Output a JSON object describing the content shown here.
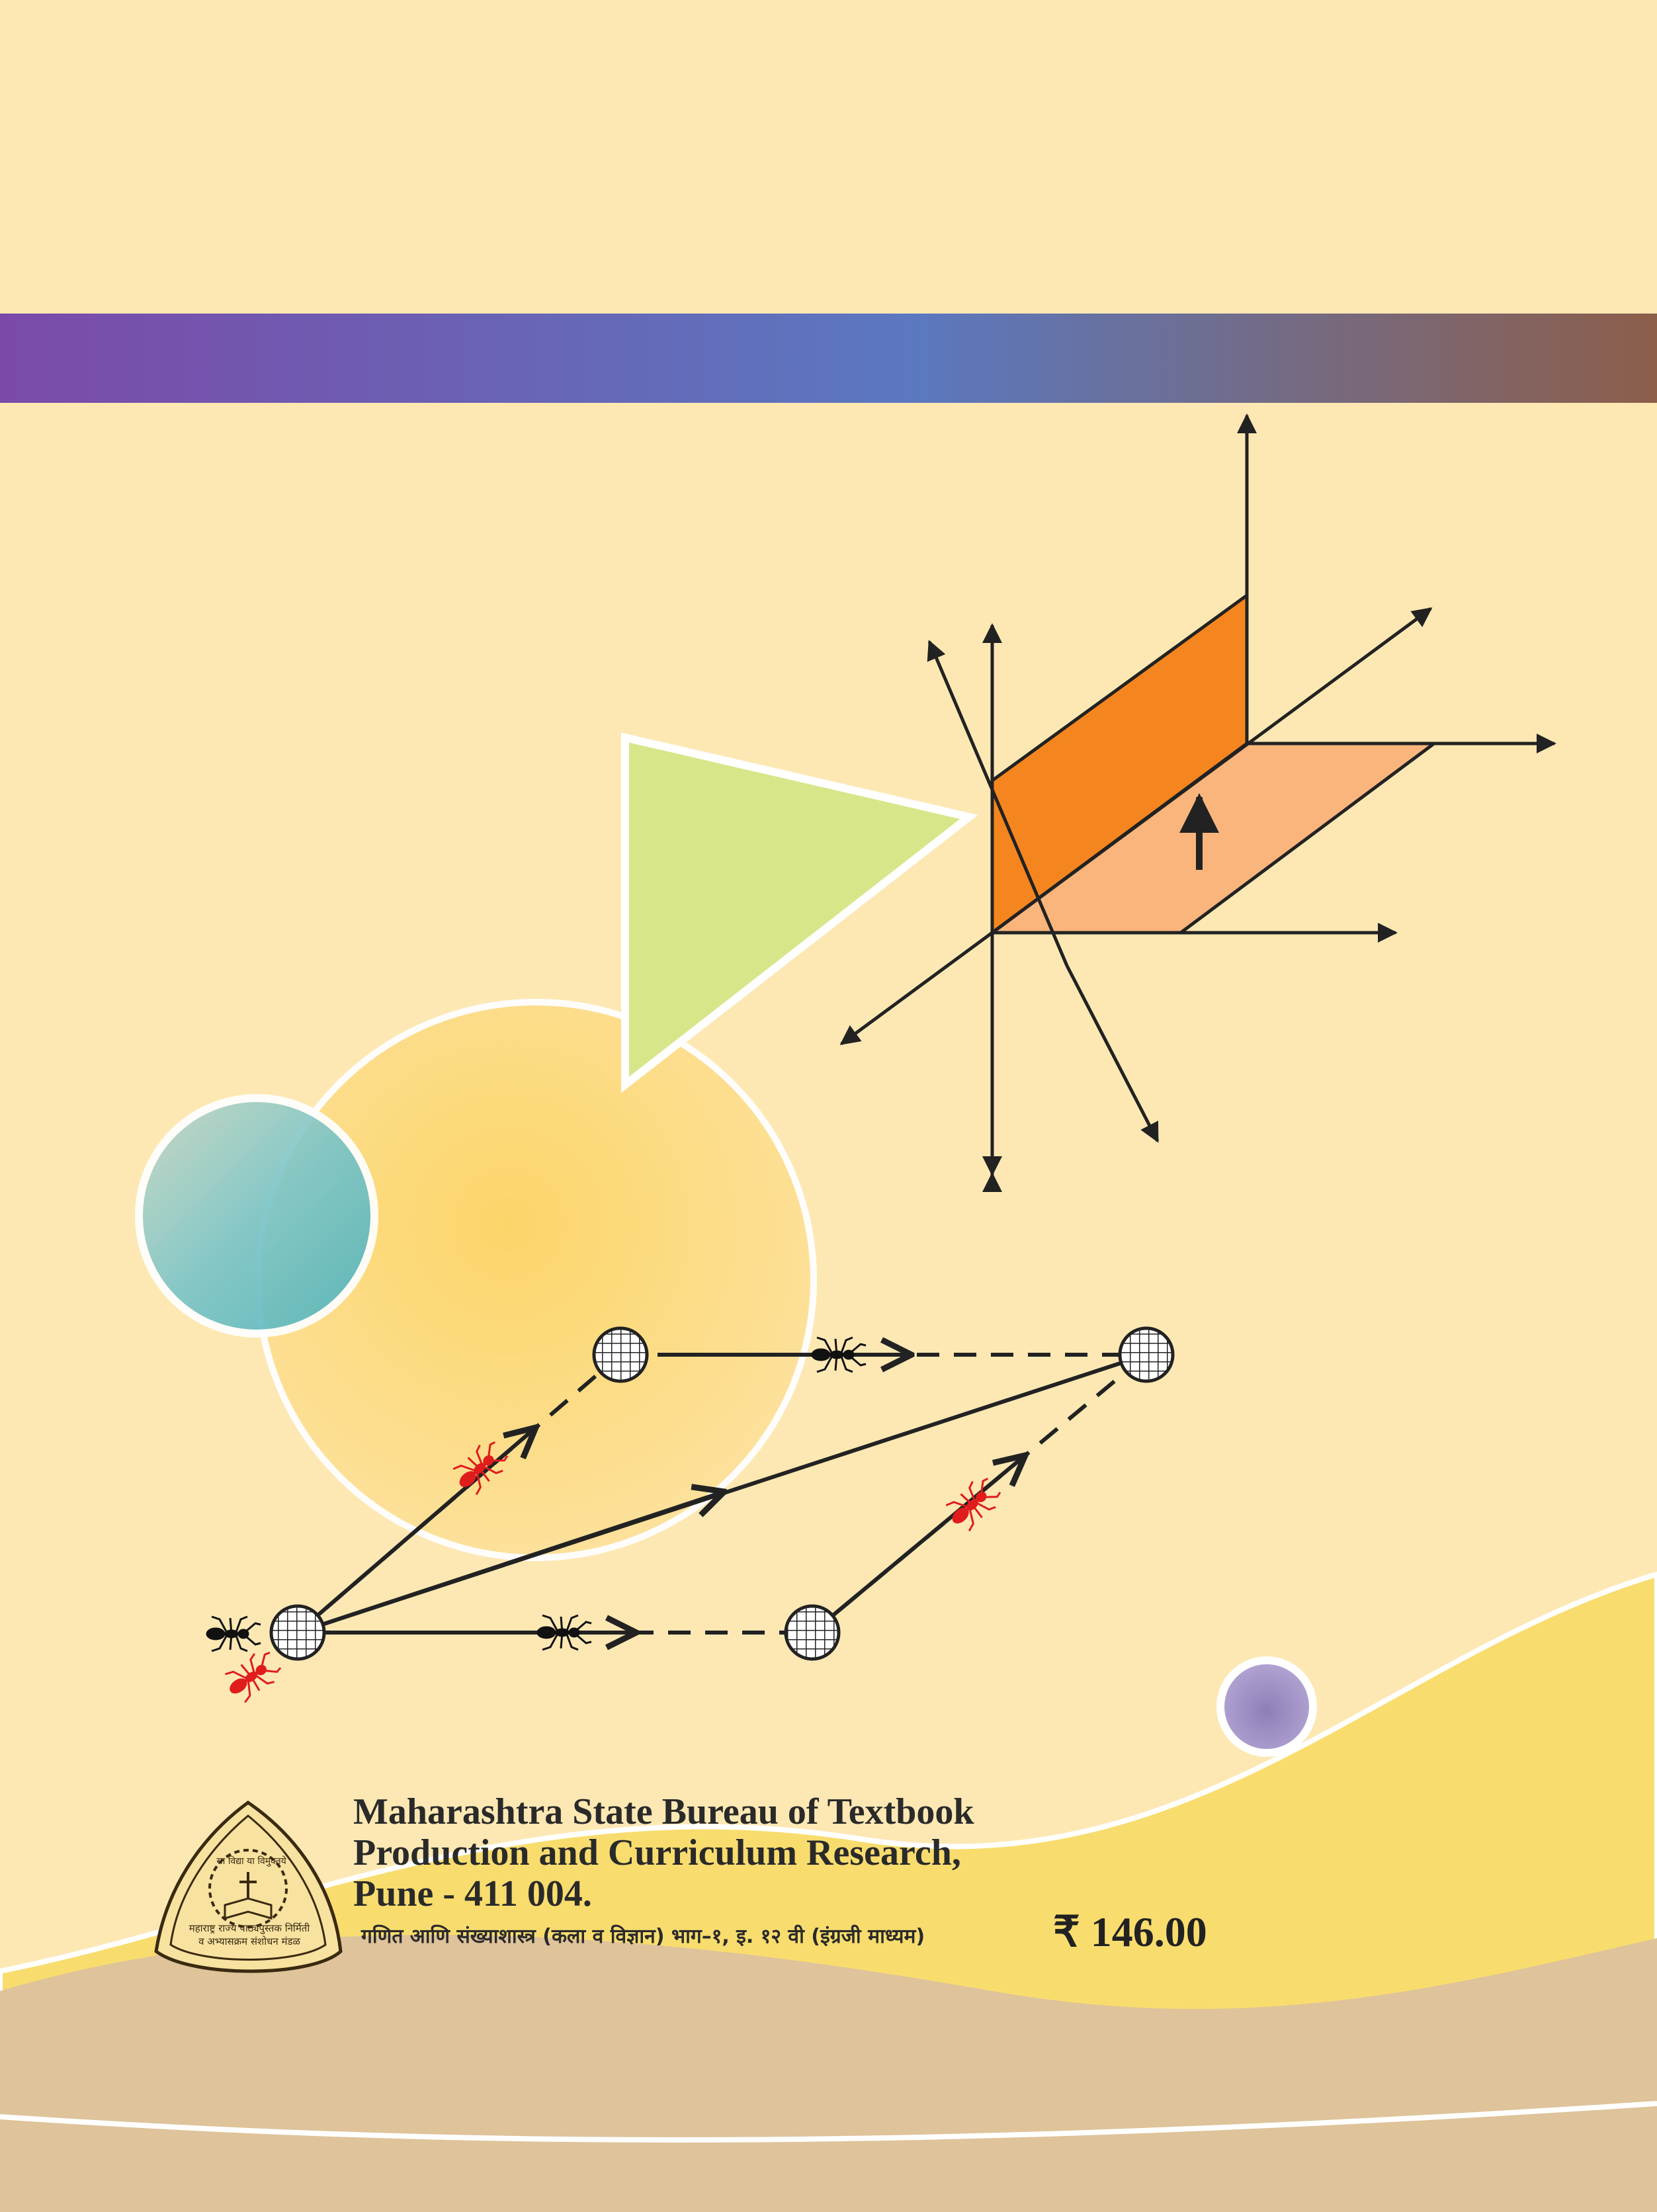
{
  "publisher": {
    "line1": "Maharashtra State Bureau of Textbook",
    "line2": "Production and Curriculum Research,",
    "line3": "Pune - 411 004."
  },
  "book_title_marathi": "गणित आणि संख्याशास्त्र (कला व विज्ञान) भाग–१, इ. १२ वी (इंग्रजी माध्यम)",
  "price": "₹ 146.00",
  "logo": {
    "motto": "सा विद्या या विमुक्तये",
    "org_line1": "महाराष्ट्र राज्य पाठ्यपुस्तक निर्मिती",
    "org_line2": "व अभ्यासक्रम संशोधन मंडळ"
  },
  "colors": {
    "background": "#fde8b4",
    "band_start": "#7b4aa8",
    "band_mid": "#5b78c0",
    "band_end": "#8c5e4a",
    "orange_plane": "#f5861f",
    "light_orange_plane": "#f9b57c",
    "green_triangle": "#d8e68a",
    "yellow_circle": "#fcd566",
    "teal_circle": "#6cc0c4",
    "purple_circle": "#8e7fb8",
    "ant_red": "#e01c1c",
    "wave_yellow": "#f8dd6e",
    "wave_tan": "#dfc39a"
  }
}
